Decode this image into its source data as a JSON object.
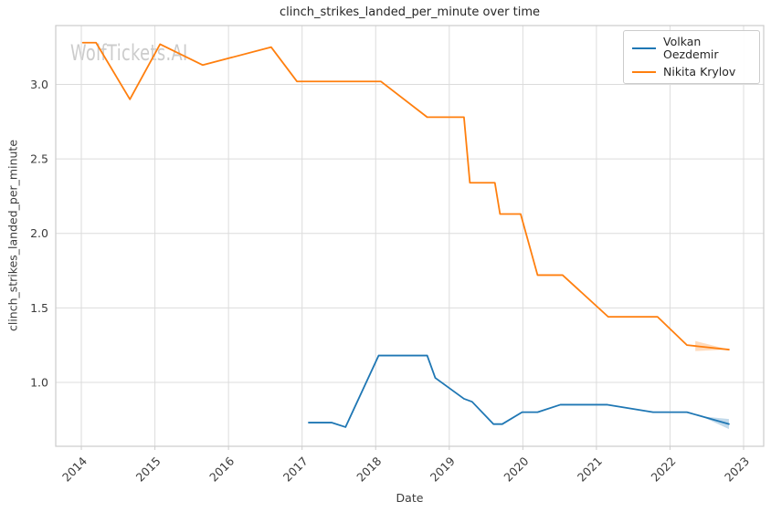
{
  "chart_data": {
    "type": "line",
    "title": "clinch_strikes_landed_per_minute over time",
    "xlabel": "Date",
    "ylabel": "clinch_strikes_landed_per_minute",
    "watermark": "WolfTickets.AI",
    "xlim": [
      2013.652,
      2023.273
    ],
    "ylim": [
      0.571,
      3.395
    ],
    "x_ticks": [
      2014,
      2015,
      2016,
      2017,
      2018,
      2019,
      2020,
      2021,
      2022,
      2023
    ],
    "y_ticks": [
      "1.0",
      "1.5",
      "2.0",
      "2.5",
      "3.0"
    ],
    "grid": true,
    "legend_position": "upper-right",
    "colors": {
      "grid": "#dcdcdc",
      "axis_border": "#cccccc",
      "tick_text": "#3b3b3b",
      "title_text": "#262626",
      "watermark": "#cccccc",
      "background": "#ffffff"
    },
    "series": [
      {
        "name": "Volkan Oezdemir",
        "color": "#1f77b4",
        "end_wedge": "end-wide",
        "points": [
          [
            2017.09,
            0.73
          ],
          [
            2017.4,
            0.73
          ],
          [
            2017.59,
            0.7
          ],
          [
            2018.04,
            1.18
          ],
          [
            2018.7,
            1.18
          ],
          [
            2018.81,
            1.03
          ],
          [
            2019.2,
            0.89
          ],
          [
            2019.31,
            0.87
          ],
          [
            2019.6,
            0.72
          ],
          [
            2019.72,
            0.72
          ],
          [
            2019.99,
            0.8
          ],
          [
            2020.2,
            0.8
          ],
          [
            2020.51,
            0.85
          ],
          [
            2021.15,
            0.85
          ],
          [
            2021.77,
            0.8
          ],
          [
            2022.23,
            0.8
          ],
          [
            2022.8,
            0.72
          ]
        ]
      },
      {
        "name": "Nikita Krylov",
        "color": "#ff7f0e",
        "end_wedge": "start-wide",
        "points": [
          [
            2014.02,
            3.28
          ],
          [
            2014.2,
            3.28
          ],
          [
            2014.66,
            2.9
          ],
          [
            2015.07,
            3.27
          ],
          [
            2015.65,
            3.13
          ],
          [
            2016.58,
            3.25
          ],
          [
            2016.93,
            3.02
          ],
          [
            2018.07,
            3.02
          ],
          [
            2018.7,
            2.78
          ],
          [
            2019.2,
            2.78
          ],
          [
            2019.28,
            2.34
          ],
          [
            2019.62,
            2.34
          ],
          [
            2019.69,
            2.13
          ],
          [
            2019.97,
            2.13
          ],
          [
            2020.2,
            1.72
          ],
          [
            2020.54,
            1.72
          ],
          [
            2021.16,
            1.44
          ],
          [
            2021.83,
            1.44
          ],
          [
            2022.23,
            1.25
          ],
          [
            2022.8,
            1.22
          ]
        ]
      }
    ]
  }
}
